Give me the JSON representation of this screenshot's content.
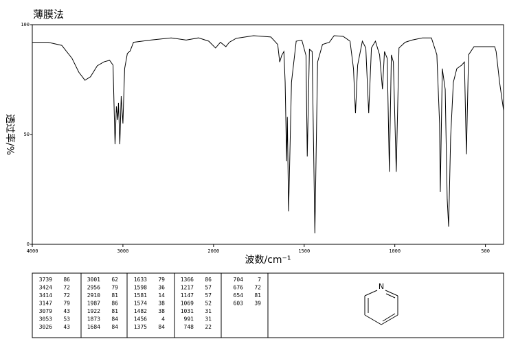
{
  "chart_data": {
    "type": "line",
    "title": "薄膜法",
    "xlabel": "波数/cm⁻¹",
    "ylabel": "透过率/%",
    "xlim": [
      4000,
      400
    ],
    "x_scale_break": 2000,
    "ylim": [
      0,
      100
    ],
    "xticks": [
      4000,
      3000,
      2000,
      1500,
      1000,
      500
    ],
    "yticks": [
      0,
      50,
      100
    ],
    "series": [
      {
        "color": "#000000",
        "x": [
          4000,
          3826,
          3675,
          3562,
          3487,
          3419,
          3358,
          3283,
          3208,
          3147,
          3109,
          3087,
          3072,
          3057,
          3049,
          3034,
          3019,
          3000,
          2981,
          2951,
          2921,
          2883,
          2694,
          2468,
          2302,
          2166,
          2053,
          1989,
          1962,
          1932,
          1913,
          1875,
          1779,
          1684,
          1646,
          1635,
          1624,
          1612,
          1605,
          1597,
          1593,
          1586,
          1570,
          1544,
          1513,
          1490,
          1483,
          1471,
          1456,
          1441,
          1426,
          1399,
          1361,
          1335,
          1285,
          1247,
          1228,
          1217,
          1205,
          1179,
          1160,
          1144,
          1129,
          1107,
          1084,
          1068,
          1057,
          1042,
          1030,
          1019,
          1008,
          992,
          977,
          943,
          905,
          848,
          798,
          768,
          753,
          749,
          738,
          722,
          711,
          703,
          692,
          677,
          658,
          631,
          616,
          605,
          593,
          563,
          449,
          441,
          422,
          400
        ],
        "values": [
          92,
          92,
          90.6,
          84.7,
          78.4,
          74.7,
          76.3,
          81.3,
          83.1,
          83.8,
          81.6,
          45.6,
          62.8,
          56.6,
          64.4,
          45.6,
          67.5,
          55,
          80,
          86.9,
          88,
          92,
          93,
          94,
          93,
          94,
          92.5,
          89.4,
          92,
          90,
          92,
          93.8,
          95,
          94.4,
          91,
          83,
          86,
          87.8,
          73.8,
          37.8,
          58,
          15,
          73.8,
          92.5,
          93,
          86,
          40,
          88.8,
          87.8,
          5,
          83,
          91,
          92,
          95,
          94.7,
          92.5,
          80,
          59.7,
          81.6,
          92.5,
          89.4,
          59.7,
          89.4,
          92.5,
          86.3,
          70.6,
          87.8,
          84.7,
          33,
          86.3,
          83,
          33,
          89.4,
          92,
          93,
          94,
          94,
          86.3,
          55,
          23.8,
          80,
          70.6,
          20.6,
          8,
          48.8,
          73.8,
          80,
          81.6,
          83,
          41,
          86.3,
          90,
          90,
          87.8,
          73.8,
          61
        ]
      }
    ]
  },
  "peak_table": {
    "columns": [
      [
        [
          "3739",
          "86"
        ],
        [
          "3424",
          "72"
        ],
        [
          "3414",
          "72"
        ],
        [
          "3147",
          "79"
        ],
        [
          "3079",
          "43"
        ],
        [
          "3053",
          "53"
        ],
        [
          "3026",
          "43"
        ]
      ],
      [
        [
          "3001",
          "62"
        ],
        [
          "2956",
          "79"
        ],
        [
          "2910",
          "81"
        ],
        [
          "1987",
          "86"
        ],
        [
          "1922",
          "81"
        ],
        [
          "1873",
          "84"
        ],
        [
          "1684",
          "84"
        ]
      ],
      [
        [
          "1633",
          "79"
        ],
        [
          "1598",
          "36"
        ],
        [
          "1581",
          "14"
        ],
        [
          "1574",
          "38"
        ],
        [
          "1482",
          "38"
        ],
        [
          "1456",
          "4"
        ],
        [
          "1375",
          "84"
        ]
      ],
      [
        [
          "1366",
          "86"
        ],
        [
          "1217",
          "57"
        ],
        [
          "1147",
          "57"
        ],
        [
          "1069",
          "52"
        ],
        [
          "1031",
          "31"
        ],
        [
          "991",
          "31"
        ],
        [
          "748",
          "22"
        ]
      ],
      [
        [
          "704",
          "7"
        ],
        [
          "676",
          "72"
        ],
        [
          "654",
          "81"
        ],
        [
          "603",
          "39"
        ]
      ]
    ]
  },
  "structure": {
    "atom_label": "N"
  }
}
